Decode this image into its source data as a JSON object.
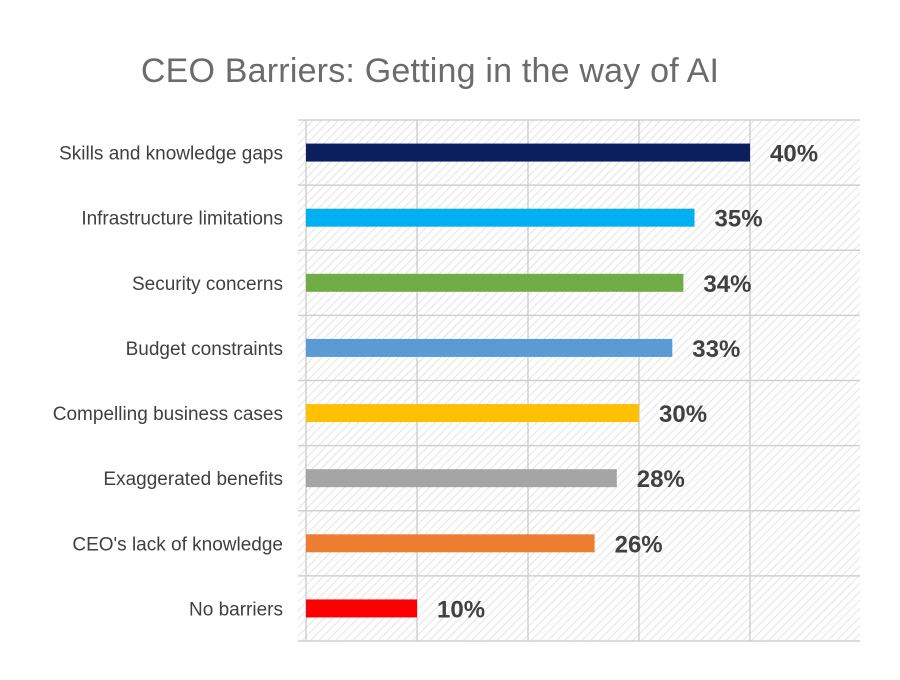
{
  "chart_data": {
    "type": "bar",
    "orientation": "horizontal",
    "title": "CEO Barriers: Getting in the way of AI",
    "categories": [
      "Skills and knowledge gaps",
      "Infrastructure limitations",
      "Security concerns",
      "Budget constraints",
      "Compelling business cases",
      "Exaggerated benefits",
      "CEO's lack of knowledge",
      "No barriers"
    ],
    "values": [
      40,
      35,
      34,
      33,
      30,
      28,
      26,
      10
    ],
    "value_labels": [
      "40%",
      "35%",
      "34%",
      "33%",
      "30%",
      "28%",
      "26%",
      "10%"
    ],
    "colors": [
      "#0b1f5e",
      "#00b0f0",
      "#70ad47",
      "#5b9bd5",
      "#ffc000",
      "#a5a5a5",
      "#ed7d31",
      "#ff0000"
    ],
    "xlim": [
      0,
      50
    ],
    "grid": true,
    "legend": "none"
  }
}
